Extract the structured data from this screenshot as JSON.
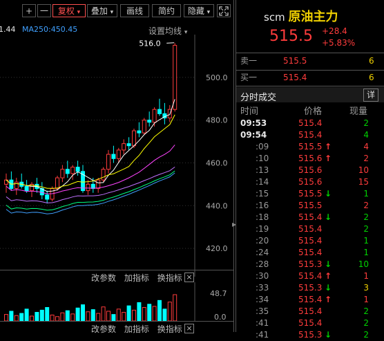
{
  "toolbar": {
    "plus": "+",
    "minus": "一",
    "adjust": "复权",
    "overlay": "叠加",
    "draw_line": "画线",
    "brief": "简约",
    "hide": "隐藏",
    "chevron": "▾"
  },
  "chart": {
    "ma_prefix": "1.44",
    "ma250": "MA250:450.45",
    "ma_settings": "设置均线",
    "peak_label": "516.0",
    "price_ticks": [
      "500.0",
      "480.0",
      "460.0",
      "440.0",
      "420.0"
    ],
    "indicator_buttons": [
      "改参数",
      "加指标",
      "换指标"
    ],
    "volume_ticks": [
      "48.7",
      "0.0"
    ],
    "close_label": "×",
    "colors": {
      "up": "#ff3c3c",
      "down": "#00ffff",
      "ma5": "#ffffff",
      "ma10": "#ffff00",
      "ma20": "#ff44ff",
      "ma60": "#c070ff",
      "ma120": "#00ff80",
      "ma250": "#40a0ff"
    },
    "chart_data": {
      "type": "candlestick",
      "y_range": [
        410,
        520
      ],
      "candles": [
        {
          "o": 450,
          "h": 455,
          "l": 446,
          "c": 452
        },
        {
          "o": 452,
          "h": 456,
          "l": 447,
          "c": 448
        },
        {
          "o": 448,
          "h": 453,
          "l": 445,
          "c": 451
        },
        {
          "o": 451,
          "h": 455,
          "l": 448,
          "c": 449
        },
        {
          "o": 449,
          "h": 452,
          "l": 446,
          "c": 447
        },
        {
          "o": 447,
          "h": 451,
          "l": 444,
          "c": 450
        },
        {
          "o": 450,
          "h": 453,
          "l": 446,
          "c": 448
        },
        {
          "o": 448,
          "h": 451,
          "l": 443,
          "c": 445
        },
        {
          "o": 445,
          "h": 447,
          "l": 441,
          "c": 443
        },
        {
          "o": 443,
          "h": 449,
          "l": 442,
          "c": 448
        },
        {
          "o": 448,
          "h": 454,
          "l": 447,
          "c": 453
        },
        {
          "o": 453,
          "h": 459,
          "l": 451,
          "c": 457
        },
        {
          "o": 457,
          "h": 461,
          "l": 453,
          "c": 455
        },
        {
          "o": 455,
          "h": 459,
          "l": 452,
          "c": 458
        },
        {
          "o": 458,
          "h": 461,
          "l": 454,
          "c": 456
        },
        {
          "o": 456,
          "h": 459,
          "l": 446,
          "c": 447
        },
        {
          "o": 447,
          "h": 452,
          "l": 445,
          "c": 450
        },
        {
          "o": 450,
          "h": 453,
          "l": 446,
          "c": 448
        },
        {
          "o": 448,
          "h": 453,
          "l": 446,
          "c": 452
        },
        {
          "o": 452,
          "h": 458,
          "l": 451,
          "c": 457
        },
        {
          "o": 457,
          "h": 466,
          "l": 455,
          "c": 464
        },
        {
          "o": 464,
          "h": 468,
          "l": 460,
          "c": 462
        },
        {
          "o": 462,
          "h": 467,
          "l": 460,
          "c": 466
        },
        {
          "o": 466,
          "h": 471,
          "l": 464,
          "c": 469
        },
        {
          "o": 469,
          "h": 472,
          "l": 466,
          "c": 468
        },
        {
          "o": 468,
          "h": 476,
          "l": 467,
          "c": 475
        },
        {
          "o": 475,
          "h": 479,
          "l": 472,
          "c": 474
        },
        {
          "o": 474,
          "h": 481,
          "l": 473,
          "c": 480
        },
        {
          "o": 480,
          "h": 484,
          "l": 477,
          "c": 479
        },
        {
          "o": 479,
          "h": 486,
          "l": 477,
          "c": 485
        },
        {
          "o": 485,
          "h": 490,
          "l": 482,
          "c": 483
        },
        {
          "o": 483,
          "h": 488,
          "l": 478,
          "c": 481
        },
        {
          "o": 481,
          "h": 487,
          "l": 479,
          "c": 485
        },
        {
          "o": 485,
          "h": 516,
          "l": 484,
          "c": 515
        }
      ],
      "volumes": [
        12,
        18,
        10,
        14,
        22,
        9,
        16,
        20,
        25,
        11,
        8,
        15,
        19,
        13,
        24,
        30,
        17,
        21,
        14,
        26,
        18,
        12,
        22,
        16,
        28,
        20,
        34,
        25,
        31,
        27,
        38,
        22,
        35,
        48.7
      ]
    }
  },
  "quote": {
    "code": "scm",
    "name": "原油主力",
    "price": "515.5",
    "change": "+28.4",
    "change_pct": "+5.83%",
    "sell1_label": "卖一",
    "sell1_price": "515.5",
    "sell1_qty": "6",
    "buy1_label": "买一",
    "buy1_price": "515.4",
    "buy1_qty": "6",
    "ticks_title": "分时成交",
    "detail_button": "详",
    "col_time": "时间",
    "col_price": "价格",
    "col_volume": "现量"
  },
  "ticks": [
    {
      "time": "09:53",
      "price": "515.4",
      "arrow": "",
      "qty": "2",
      "qc": "green",
      "bold": true
    },
    {
      "time": "09:54",
      "price": "515.4",
      "arrow": "",
      "qty": "4",
      "qc": "green",
      "bold": true
    },
    {
      "time": ":09",
      "price": "515.5",
      "arrow": "↑",
      "qty": "4",
      "qc": "red"
    },
    {
      "time": ":10",
      "price": "515.6",
      "arrow": "↑",
      "qty": "2",
      "qc": "red"
    },
    {
      "time": ":13",
      "price": "515.6",
      "arrow": "",
      "qty": "10",
      "qc": "red"
    },
    {
      "time": ":14",
      "price": "515.6",
      "arrow": "",
      "qty": "15",
      "qc": "red"
    },
    {
      "time": ":15",
      "price": "515.5",
      "arrow": "↓",
      "qty": "1",
      "qc": "green"
    },
    {
      "time": ":16",
      "price": "515.5",
      "arrow": "",
      "qty": "2",
      "qc": "red"
    },
    {
      "time": ":18",
      "price": "515.4",
      "arrow": "↓",
      "qty": "2",
      "qc": "green"
    },
    {
      "time": ":19",
      "price": "515.4",
      "arrow": "",
      "qty": "2",
      "qc": "green"
    },
    {
      "time": ":20",
      "price": "515.4",
      "arrow": "",
      "qty": "1",
      "qc": "green"
    },
    {
      "time": ":24",
      "price": "515.4",
      "arrow": "",
      "qty": "1",
      "qc": "green"
    },
    {
      "time": ":28",
      "price": "515.3",
      "arrow": "↓",
      "qty": "10",
      "qc": "green"
    },
    {
      "time": ":30",
      "price": "515.4",
      "arrow": "↑",
      "qty": "1",
      "qc": "red"
    },
    {
      "time": ":33",
      "price": "515.3",
      "arrow": "↓",
      "qty": "3",
      "qc": "yellow"
    },
    {
      "time": ":34",
      "price": "515.4",
      "arrow": "↑",
      "qty": "1",
      "qc": "red"
    },
    {
      "time": ":35",
      "price": "515.4",
      "arrow": "",
      "qty": "2",
      "qc": "green"
    },
    {
      "time": ":41",
      "price": "515.4",
      "arrow": "",
      "qty": "2",
      "qc": "green"
    },
    {
      "time": ":41",
      "price": "515.3",
      "arrow": "↓",
      "qty": "2",
      "qc": "green"
    }
  ]
}
